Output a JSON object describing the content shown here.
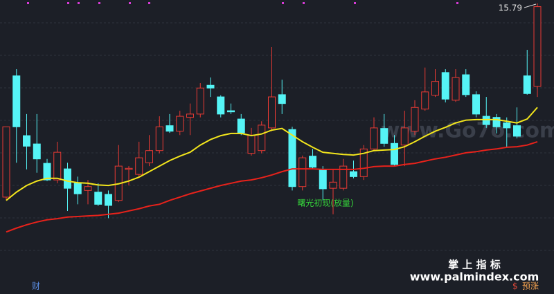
{
  "chart_data": {
    "type": "candlestick",
    "ylim": [
      10.54,
      15.85
    ],
    "up_color": "#ea3a34",
    "down_color": "#55f4f6",
    "open": [
      12.29,
      14.48,
      13.4,
      13.25,
      12.9,
      12.6,
      12.8,
      12.54,
      12.41,
      12.38,
      12.34,
      12.23,
      12.79,
      12.7,
      12.91,
      13.13,
      13.58,
      13.48,
      13.73,
      13.79,
      14.31,
      14.1,
      13.85,
      13.7,
      13.08,
      13.13,
      13.54,
      14.14,
      13.51,
      12.48,
      13.03,
      12.79,
      12.45,
      12.45,
      12.75,
      12.66,
      13.16,
      13.53,
      13.26,
      13.23,
      13.48,
      13.88,
      14.13,
      14.54,
      14.04,
      14.5,
      14.14,
      13.75,
      13.73,
      13.63,
      13.58,
      14.48,
      14.29
    ],
    "high": [
      13.56,
      14.6,
      13.79,
      13.79,
      12.98,
      13.29,
      12.91,
      12.66,
      12.6,
      12.54,
      12.41,
      13.23,
      12.85,
      13.29,
      13.41,
      13.75,
      13.79,
      13.85,
      13.98,
      14.35,
      14.45,
      14.13,
      13.98,
      13.79,
      13.54,
      13.66,
      15.0,
      14.41,
      13.56,
      13.04,
      13.16,
      12.85,
      12.79,
      12.98,
      12.95,
      13.23,
      13.73,
      13.79,
      13.41,
      13.85,
      14.04,
      14.63,
      14.6,
      14.6,
      14.6,
      14.6,
      14.2,
      14.1,
      13.79,
      13.73,
      13.91,
      14.95,
      15.79
    ],
    "low": [
      12.23,
      12.91,
      12.79,
      12.73,
      12.58,
      12.54,
      12.04,
      12.16,
      12.16,
      12.13,
      11.91,
      12.2,
      12.5,
      12.66,
      12.85,
      13.08,
      13.45,
      13.41,
      13.41,
      13.73,
      14.1,
      13.73,
      13.79,
      13.41,
      13.04,
      13.08,
      13.48,
      13.79,
      12.41,
      12.41,
      12.79,
      12.23,
      11.98,
      12.41,
      12.63,
      12.6,
      13.13,
      13.2,
      12.85,
      12.85,
      13.41,
      13.85,
      14.1,
      14.0,
      14.01,
      14.1,
      13.73,
      13.54,
      13.44,
      13.2,
      13.35,
      14.14,
      14.1
    ],
    "close": [
      13.56,
      13.56,
      13.21,
      12.98,
      12.6,
      13.1,
      12.45,
      12.35,
      12.48,
      12.16,
      12.14,
      12.85,
      12.81,
      13.0,
      13.13,
      13.56,
      13.48,
      13.75,
      13.79,
      14.26,
      14.26,
      13.79,
      13.83,
      13.45,
      13.41,
      13.59,
      14.1,
      13.98,
      12.48,
      13.0,
      12.83,
      12.44,
      12.56,
      12.85,
      12.66,
      13.16,
      13.54,
      13.26,
      12.88,
      13.54,
      13.91,
      14.19,
      14.38,
      14.06,
      14.45,
      14.14,
      13.79,
      13.6,
      13.56,
      13.54,
      13.39,
      14.16,
      15.73
    ],
    "lines": [
      {
        "color": "#f3e61c",
        "values": [
          12.23,
          12.38,
          12.5,
          12.58,
          12.63,
          12.63,
          12.58,
          12.55,
          12.54,
          12.51,
          12.5,
          12.53,
          12.58,
          12.65,
          12.75,
          12.85,
          12.95,
          13.03,
          13.1,
          13.23,
          13.33,
          13.4,
          13.44,
          13.44,
          13.4,
          13.43,
          13.5,
          13.53,
          13.41,
          13.29,
          13.19,
          13.1,
          13.08,
          13.06,
          13.05,
          13.08,
          13.13,
          13.14,
          13.15,
          13.2,
          13.29,
          13.39,
          13.48,
          13.55,
          13.63,
          13.68,
          13.69,
          13.69,
          13.69,
          13.66,
          13.63,
          13.7,
          13.91
        ]
      },
      {
        "color": "#e8221b",
        "values": [
          11.66,
          11.73,
          11.79,
          11.84,
          11.88,
          11.9,
          11.93,
          11.94,
          11.95,
          11.96,
          11.98,
          12.0,
          12.04,
          12.08,
          12.13,
          12.16,
          12.23,
          12.29,
          12.35,
          12.4,
          12.45,
          12.5,
          12.54,
          12.58,
          12.6,
          12.64,
          12.69,
          12.75,
          12.8,
          12.8,
          12.8,
          12.79,
          12.79,
          12.79,
          12.79,
          12.81,
          12.84,
          12.85,
          12.85,
          12.88,
          12.9,
          12.94,
          12.98,
          13.01,
          13.05,
          13.09,
          13.11,
          13.14,
          13.16,
          13.19,
          13.2,
          13.23,
          13.29
        ]
      }
    ],
    "high_label": "15.79",
    "signal_label": "曙光初现(放量)",
    "watermark": "www.Go7o.com",
    "brand": "掌 上 指 标",
    "brand_url": "www.palmindex.com",
    "bottom_left": "财",
    "bottom_right": "预涨"
  }
}
